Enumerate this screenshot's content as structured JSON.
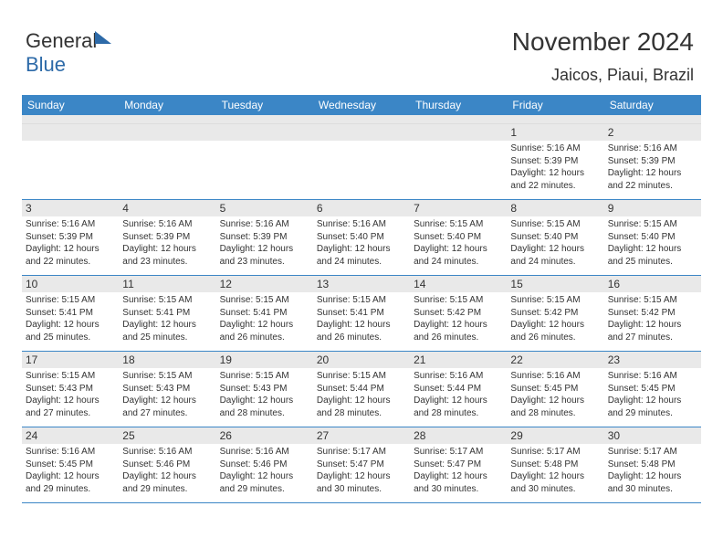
{
  "logo": {
    "text_gray": "General",
    "text_blue": "Blue"
  },
  "title": "November 2024",
  "subtitle": "Jaicos, Piaui, Brazil",
  "colors": {
    "header_bg": "#3b86c6",
    "header_text": "#ffffff",
    "daynum_bg": "#e9e9e9",
    "text": "#333333",
    "row_border": "#3b86c6",
    "logo_blue": "#2d6aa8"
  },
  "day_headers": [
    "Sunday",
    "Monday",
    "Tuesday",
    "Wednesday",
    "Thursday",
    "Friday",
    "Saturday"
  ],
  "weeks": [
    [
      {
        "n": "",
        "sr": "",
        "ss": "",
        "dl": ""
      },
      {
        "n": "",
        "sr": "",
        "ss": "",
        "dl": ""
      },
      {
        "n": "",
        "sr": "",
        "ss": "",
        "dl": ""
      },
      {
        "n": "",
        "sr": "",
        "ss": "",
        "dl": ""
      },
      {
        "n": "",
        "sr": "",
        "ss": "",
        "dl": ""
      },
      {
        "n": "1",
        "sr": "Sunrise: 5:16 AM",
        "ss": "Sunset: 5:39 PM",
        "dl": "Daylight: 12 hours and 22 minutes."
      },
      {
        "n": "2",
        "sr": "Sunrise: 5:16 AM",
        "ss": "Sunset: 5:39 PM",
        "dl": "Daylight: 12 hours and 22 minutes."
      }
    ],
    [
      {
        "n": "3",
        "sr": "Sunrise: 5:16 AM",
        "ss": "Sunset: 5:39 PM",
        "dl": "Daylight: 12 hours and 22 minutes."
      },
      {
        "n": "4",
        "sr": "Sunrise: 5:16 AM",
        "ss": "Sunset: 5:39 PM",
        "dl": "Daylight: 12 hours and 23 minutes."
      },
      {
        "n": "5",
        "sr": "Sunrise: 5:16 AM",
        "ss": "Sunset: 5:39 PM",
        "dl": "Daylight: 12 hours and 23 minutes."
      },
      {
        "n": "6",
        "sr": "Sunrise: 5:16 AM",
        "ss": "Sunset: 5:40 PM",
        "dl": "Daylight: 12 hours and 24 minutes."
      },
      {
        "n": "7",
        "sr": "Sunrise: 5:15 AM",
        "ss": "Sunset: 5:40 PM",
        "dl": "Daylight: 12 hours and 24 minutes."
      },
      {
        "n": "8",
        "sr": "Sunrise: 5:15 AM",
        "ss": "Sunset: 5:40 PM",
        "dl": "Daylight: 12 hours and 24 minutes."
      },
      {
        "n": "9",
        "sr": "Sunrise: 5:15 AM",
        "ss": "Sunset: 5:40 PM",
        "dl": "Daylight: 12 hours and 25 minutes."
      }
    ],
    [
      {
        "n": "10",
        "sr": "Sunrise: 5:15 AM",
        "ss": "Sunset: 5:41 PM",
        "dl": "Daylight: 12 hours and 25 minutes."
      },
      {
        "n": "11",
        "sr": "Sunrise: 5:15 AM",
        "ss": "Sunset: 5:41 PM",
        "dl": "Daylight: 12 hours and 25 minutes."
      },
      {
        "n": "12",
        "sr": "Sunrise: 5:15 AM",
        "ss": "Sunset: 5:41 PM",
        "dl": "Daylight: 12 hours and 26 minutes."
      },
      {
        "n": "13",
        "sr": "Sunrise: 5:15 AM",
        "ss": "Sunset: 5:41 PM",
        "dl": "Daylight: 12 hours and 26 minutes."
      },
      {
        "n": "14",
        "sr": "Sunrise: 5:15 AM",
        "ss": "Sunset: 5:42 PM",
        "dl": "Daylight: 12 hours and 26 minutes."
      },
      {
        "n": "15",
        "sr": "Sunrise: 5:15 AM",
        "ss": "Sunset: 5:42 PM",
        "dl": "Daylight: 12 hours and 26 minutes."
      },
      {
        "n": "16",
        "sr": "Sunrise: 5:15 AM",
        "ss": "Sunset: 5:42 PM",
        "dl": "Daylight: 12 hours and 27 minutes."
      }
    ],
    [
      {
        "n": "17",
        "sr": "Sunrise: 5:15 AM",
        "ss": "Sunset: 5:43 PM",
        "dl": "Daylight: 12 hours and 27 minutes."
      },
      {
        "n": "18",
        "sr": "Sunrise: 5:15 AM",
        "ss": "Sunset: 5:43 PM",
        "dl": "Daylight: 12 hours and 27 minutes."
      },
      {
        "n": "19",
        "sr": "Sunrise: 5:15 AM",
        "ss": "Sunset: 5:43 PM",
        "dl": "Daylight: 12 hours and 28 minutes."
      },
      {
        "n": "20",
        "sr": "Sunrise: 5:15 AM",
        "ss": "Sunset: 5:44 PM",
        "dl": "Daylight: 12 hours and 28 minutes."
      },
      {
        "n": "21",
        "sr": "Sunrise: 5:16 AM",
        "ss": "Sunset: 5:44 PM",
        "dl": "Daylight: 12 hours and 28 minutes."
      },
      {
        "n": "22",
        "sr": "Sunrise: 5:16 AM",
        "ss": "Sunset: 5:45 PM",
        "dl": "Daylight: 12 hours and 28 minutes."
      },
      {
        "n": "23",
        "sr": "Sunrise: 5:16 AM",
        "ss": "Sunset: 5:45 PM",
        "dl": "Daylight: 12 hours and 29 minutes."
      }
    ],
    [
      {
        "n": "24",
        "sr": "Sunrise: 5:16 AM",
        "ss": "Sunset: 5:45 PM",
        "dl": "Daylight: 12 hours and 29 minutes."
      },
      {
        "n": "25",
        "sr": "Sunrise: 5:16 AM",
        "ss": "Sunset: 5:46 PM",
        "dl": "Daylight: 12 hours and 29 minutes."
      },
      {
        "n": "26",
        "sr": "Sunrise: 5:16 AM",
        "ss": "Sunset: 5:46 PM",
        "dl": "Daylight: 12 hours and 29 minutes."
      },
      {
        "n": "27",
        "sr": "Sunrise: 5:17 AM",
        "ss": "Sunset: 5:47 PM",
        "dl": "Daylight: 12 hours and 30 minutes."
      },
      {
        "n": "28",
        "sr": "Sunrise: 5:17 AM",
        "ss": "Sunset: 5:47 PM",
        "dl": "Daylight: 12 hours and 30 minutes."
      },
      {
        "n": "29",
        "sr": "Sunrise: 5:17 AM",
        "ss": "Sunset: 5:48 PM",
        "dl": "Daylight: 12 hours and 30 minutes."
      },
      {
        "n": "30",
        "sr": "Sunrise: 5:17 AM",
        "ss": "Sunset: 5:48 PM",
        "dl": "Daylight: 12 hours and 30 minutes."
      }
    ]
  ]
}
